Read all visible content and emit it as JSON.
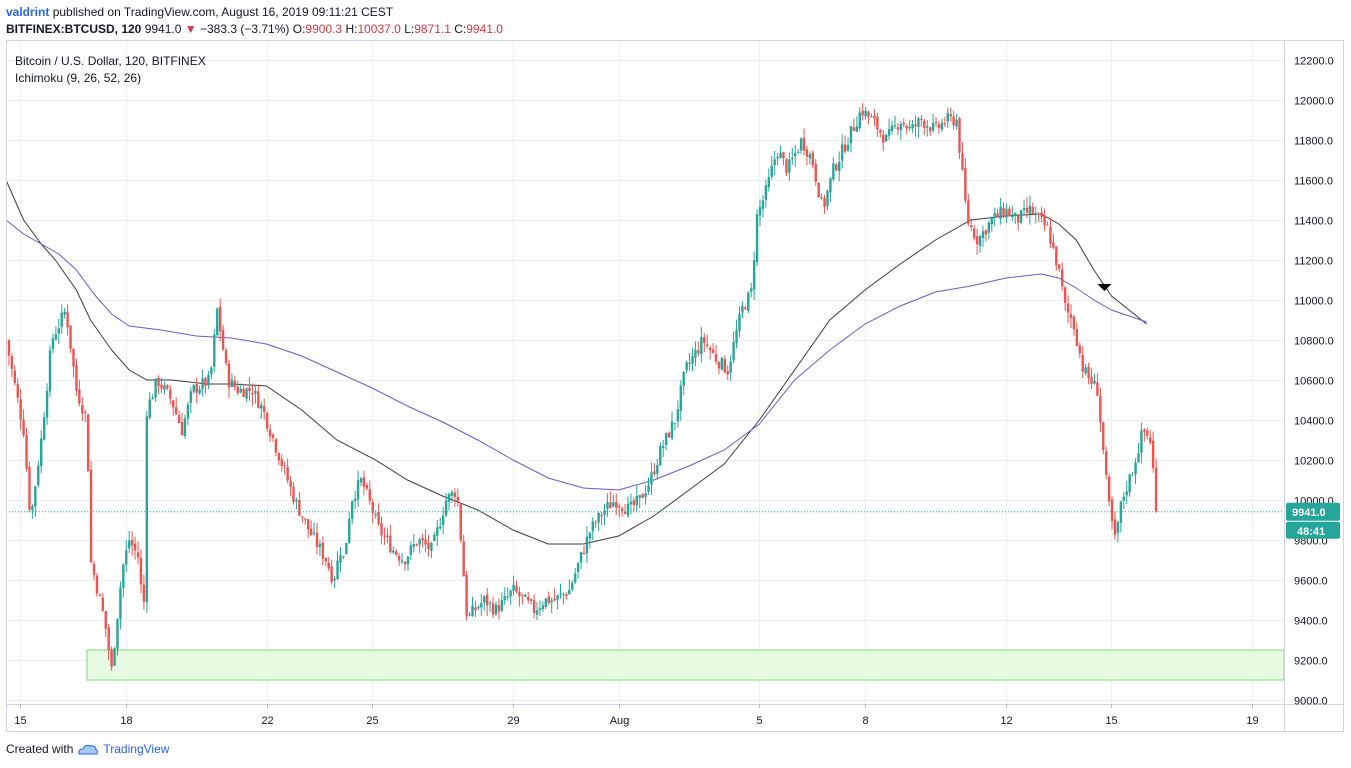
{
  "header": {
    "author": "valdrint",
    "published": "published on TradingView.com, August 16, 2019 09:11:21 CEST",
    "symbol": "BITFINEX:BTCUSD, 120",
    "last": "9941.0",
    "change": "−383.3 (−3.71%)",
    "o_label": "O:",
    "o_value": "9900.3",
    "h_label": "H:",
    "h_value": "10037.0",
    "l_label": "L:",
    "l_value": "9871.1",
    "c_label": "C:",
    "c_value": "9941.0"
  },
  "legend": {
    "title": "Bitcoin / U.S. Dollar, 120, BITFINEX",
    "indicator": "Ichimoku (9, 26, 52, 26)"
  },
  "price_badge": {
    "price": "9941.0",
    "countdown": "48:41"
  },
  "footer": {
    "created_with": "Created with",
    "brand": "TradingView"
  },
  "colors": {
    "up": "#26a69a",
    "down": "#ef5350",
    "kijun": "#3c3c3c",
    "senkou": "#6a5acd",
    "zone_fill": "#e6fbe2",
    "zone_stroke": "#7fd87a",
    "price_line": "#26a69a"
  },
  "chart_data": {
    "type": "candlestick",
    "ylim": [
      9000,
      12300
    ],
    "y_ticks": [
      "9000.0",
      "9200.0",
      "9400.0",
      "9600.0",
      "9800.0",
      "10000.0",
      "10200.0",
      "10400.0",
      "10600.0",
      "10800.0",
      "11000.0",
      "11200.0",
      "11400.0",
      "11600.0",
      "11800.0",
      "12000.0",
      "12200.0"
    ],
    "x_ticks": [
      {
        "label": "15",
        "day": 15
      },
      {
        "label": "18",
        "day": 18
      },
      {
        "label": "22",
        "day": 22
      },
      {
        "label": "25",
        "day": 25
      },
      {
        "label": "29",
        "day": 29
      },
      {
        "label": "Aug",
        "day": 32
      },
      {
        "label": "5",
        "day": 36
      },
      {
        "label": "8",
        "day": 39
      },
      {
        "label": "12",
        "day": 43
      },
      {
        "label": "15",
        "day": 46
      },
      {
        "label": "19",
        "day": 50
      }
    ],
    "day_range": [
      14.6,
      50.9
    ],
    "last_price": 9941.0,
    "support_zone": {
      "day_from": 16.9,
      "day_to": 50.9,
      "low": 9100,
      "high": 9250
    },
    "arrow_marker": {
      "day": 45.8,
      "price": 11060
    },
    "anchors": [
      [
        14.6,
        10800
      ],
      [
        15.1,
        10350
      ],
      [
        15.3,
        9900
      ],
      [
        15.6,
        10300
      ],
      [
        15.9,
        10800
      ],
      [
        16.3,
        10950
      ],
      [
        16.6,
        10550
      ],
      [
        16.9,
        10400
      ],
      [
        17.0,
        9700
      ],
      [
        17.4,
        9400
      ],
      [
        17.6,
        9150
      ],
      [
        17.9,
        9650
      ],
      [
        18.1,
        9800
      ],
      [
        18.4,
        9700
      ],
      [
        18.5,
        9300
      ],
      [
        18.6,
        10450
      ],
      [
        18.9,
        10600
      ],
      [
        19.3,
        10500
      ],
      [
        19.6,
        10350
      ],
      [
        19.9,
        10550
      ],
      [
        20.4,
        10600
      ],
      [
        20.6,
        10950
      ],
      [
        20.9,
        10600
      ],
      [
        21.2,
        10550
      ],
      [
        21.6,
        10550
      ],
      [
        21.9,
        10450
      ],
      [
        22.4,
        10200
      ],
      [
        22.8,
        10000
      ],
      [
        23.2,
        9850
      ],
      [
        23.7,
        9700
      ],
      [
        23.9,
        9600
      ],
      [
        24.1,
        9750
      ],
      [
        24.2,
        9700
      ],
      [
        24.4,
        10000
      ],
      [
        24.7,
        10100
      ],
      [
        24.9,
        10000
      ],
      [
        25.2,
        9850
      ],
      [
        25.6,
        9750
      ],
      [
        25.9,
        9700
      ],
      [
        26.3,
        9800
      ],
      [
        26.7,
        9750
      ],
      [
        27.1,
        10000
      ],
      [
        27.4,
        10050
      ],
      [
        27.5,
        9850
      ],
      [
        27.7,
        9400
      ],
      [
        27.9,
        9450
      ],
      [
        28.2,
        9500
      ],
      [
        28.5,
        9450
      ],
      [
        28.8,
        9500
      ],
      [
        29.0,
        9550
      ],
      [
        29.3,
        9500
      ],
      [
        29.6,
        9450
      ],
      [
        29.9,
        9500
      ],
      [
        30.2,
        9500
      ],
      [
        30.6,
        9550
      ],
      [
        30.9,
        9700
      ],
      [
        31.2,
        9850
      ],
      [
        31.6,
        9950
      ],
      [
        31.9,
        10000
      ],
      [
        32.3,
        9950
      ],
      [
        32.6,
        10000
      ],
      [
        32.9,
        10100
      ],
      [
        33.2,
        10250
      ],
      [
        33.6,
        10400
      ],
      [
        33.9,
        10650
      ],
      [
        34.4,
        10800
      ],
      [
        34.8,
        10700
      ],
      [
        35.1,
        10650
      ],
      [
        35.5,
        10950
      ],
      [
        35.8,
        11050
      ],
      [
        35.9,
        11400
      ],
      [
        36.2,
        11550
      ],
      [
        36.5,
        11750
      ],
      [
        36.8,
        11650
      ],
      [
        37.2,
        11800
      ],
      [
        37.5,
        11700
      ],
      [
        37.8,
        11450
      ],
      [
        38.1,
        11650
      ],
      [
        38.5,
        11800
      ],
      [
        38.9,
        11950
      ],
      [
        39.2,
        11900
      ],
      [
        39.6,
        11800
      ],
      [
        40.0,
        11900
      ],
      [
        40.3,
        11850
      ],
      [
        40.6,
        11900
      ],
      [
        41.0,
        11850
      ],
      [
        41.3,
        11900
      ],
      [
        41.6,
        11900
      ],
      [
        41.9,
        11400
      ],
      [
        42.2,
        11300
      ],
      [
        42.6,
        11400
      ],
      [
        43.0,
        11450
      ],
      [
        43.3,
        11400
      ],
      [
        43.7,
        11450
      ],
      [
        44.2,
        11350
      ],
      [
        44.5,
        11150
      ],
      [
        44.7,
        10950
      ],
      [
        44.9,
        10900
      ],
      [
        45.2,
        10650
      ],
      [
        45.6,
        10550
      ],
      [
        45.9,
        10000
      ],
      [
        46.1,
        9800
      ],
      [
        46.3,
        10000
      ],
      [
        46.6,
        10150
      ],
      [
        46.9,
        10350
      ],
      [
        47.1,
        10300
      ],
      [
        47.3,
        9941
      ]
    ],
    "series": [
      {
        "name": "Ichimoku Kijun",
        "points": [
          [
            14.6,
            11600
          ],
          [
            15.1,
            11400
          ],
          [
            15.6,
            11280
          ],
          [
            16.0,
            11200
          ],
          [
            16.6,
            11050
          ],
          [
            17.0,
            10900
          ],
          [
            17.6,
            10750
          ],
          [
            18.1,
            10650
          ],
          [
            18.6,
            10600
          ],
          [
            19.3,
            10600
          ],
          [
            20.3,
            10580
          ],
          [
            21.0,
            10580
          ],
          [
            22.0,
            10570
          ],
          [
            23.0,
            10450
          ],
          [
            24.0,
            10300
          ],
          [
            25.1,
            10200
          ],
          [
            26.0,
            10100
          ],
          [
            27.0,
            10020
          ],
          [
            28.0,
            9950
          ],
          [
            29.0,
            9850
          ],
          [
            30.0,
            9780
          ],
          [
            31.0,
            9780
          ],
          [
            32.0,
            9820
          ],
          [
            33.0,
            9920
          ],
          [
            34.0,
            10050
          ],
          [
            35.0,
            10180
          ],
          [
            36.0,
            10400
          ],
          [
            37.0,
            10650
          ],
          [
            38.0,
            10900
          ],
          [
            39.0,
            11050
          ],
          [
            40.0,
            11180
          ],
          [
            41.0,
            11300
          ],
          [
            42.0,
            11400
          ],
          [
            43.0,
            11420
          ],
          [
            44.0,
            11430
          ],
          [
            44.5,
            11380
          ],
          [
            45.0,
            11300
          ],
          [
            45.5,
            11150
          ],
          [
            46.0,
            11020
          ],
          [
            46.5,
            10950
          ],
          [
            47.0,
            10880
          ]
        ]
      },
      {
        "name": "Ichimoku Senkou",
        "points": [
          [
            14.6,
            11400
          ],
          [
            15.1,
            11330
          ],
          [
            15.6,
            11280
          ],
          [
            16.1,
            11230
          ],
          [
            16.6,
            11150
          ],
          [
            17.1,
            11030
          ],
          [
            17.6,
            10930
          ],
          [
            18.1,
            10870
          ],
          [
            19.0,
            10850
          ],
          [
            20.0,
            10820
          ],
          [
            21.0,
            10810
          ],
          [
            22.0,
            10780
          ],
          [
            23.0,
            10720
          ],
          [
            24.0,
            10640
          ],
          [
            25.0,
            10560
          ],
          [
            26.0,
            10470
          ],
          [
            27.0,
            10390
          ],
          [
            28.0,
            10300
          ],
          [
            29.0,
            10200
          ],
          [
            30.0,
            10110
          ],
          [
            31.0,
            10060
          ],
          [
            32.0,
            10050
          ],
          [
            33.0,
            10100
          ],
          [
            34.0,
            10170
          ],
          [
            35.0,
            10250
          ],
          [
            36.0,
            10380
          ],
          [
            37.0,
            10600
          ],
          [
            38.0,
            10750
          ],
          [
            39.0,
            10880
          ],
          [
            40.0,
            10970
          ],
          [
            41.0,
            11040
          ],
          [
            42.0,
            11070
          ],
          [
            43.0,
            11110
          ],
          [
            44.0,
            11130
          ],
          [
            44.5,
            11110
          ],
          [
            45.0,
            11060
          ],
          [
            45.5,
            11000
          ],
          [
            46.0,
            10950
          ],
          [
            46.5,
            10920
          ],
          [
            47.0,
            10890
          ]
        ]
      }
    ]
  }
}
